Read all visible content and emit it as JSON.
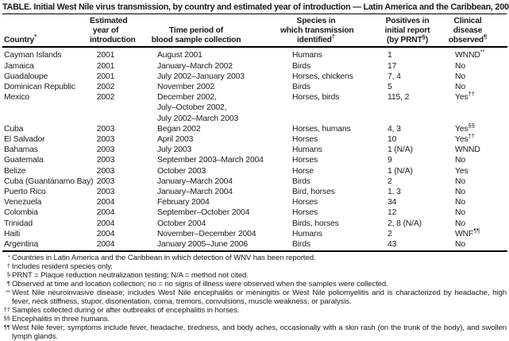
{
  "title": "TABLE. Initial West Nile virus transmission, by country and estimated year of introduction — Latin America and the Caribbean, 2001–2004",
  "table": {
    "columns": [
      {
        "lines": [
          [
            {
              "t": "Country"
            },
            {
              "s": "*"
            }
          ]
        ]
      },
      {
        "lines": [
          [
            {
              "t": "Estimated"
            }
          ],
          [
            {
              "t": "year of"
            }
          ],
          [
            {
              "t": "introduction"
            }
          ]
        ]
      },
      {
        "lines": [
          [
            {
              "t": "Time period of"
            }
          ],
          [
            {
              "t": "blood sample collection"
            }
          ]
        ]
      },
      {
        "lines": [
          [
            {
              "t": "Species in"
            }
          ],
          [
            {
              "t": "which transmission"
            }
          ],
          [
            {
              "t": "identified"
            },
            {
              "s": "†"
            }
          ]
        ]
      },
      {
        "lines": [
          [
            {
              "t": "Positives in"
            }
          ],
          [
            {
              "t": "initial report"
            }
          ],
          [
            {
              "t": "(by PRNT"
            },
            {
              "s": "§"
            },
            {
              "t": ")"
            }
          ]
        ]
      },
      {
        "lines": [
          [
            {
              "t": "Clinical"
            }
          ],
          [
            {
              "t": "disease"
            }
          ],
          [
            {
              "t": "observed"
            },
            {
              "s": "¶"
            }
          ]
        ]
      }
    ],
    "rows": [
      {
        "country": "Cayman Islands",
        "year": "2001",
        "period": [
          "August 2001"
        ],
        "species": "Humans",
        "positives": "1",
        "clinical": [
          {
            "t": "WNND"
          },
          {
            "s": "**"
          }
        ]
      },
      {
        "country": "Jamaica",
        "year": "2001",
        "period": [
          "January–March 2002"
        ],
        "species": "Birds",
        "positives": "17",
        "clinical": [
          {
            "t": "No"
          }
        ]
      },
      {
        "country": "Guadaloupe",
        "year": "2001",
        "period": [
          "July 2002–January 2003"
        ],
        "species": "Horses, chickens",
        "positives": "7, 4",
        "clinical": [
          {
            "t": "No"
          }
        ]
      },
      {
        "country": "Dominican Republic",
        "year": "2002",
        "period": [
          "November 2002"
        ],
        "species": "Birds",
        "positives": "5",
        "clinical": [
          {
            "t": "No"
          }
        ]
      },
      {
        "country": "Mexico",
        "year": "2002",
        "period": [
          "December 2002,",
          "July–October 2002,",
          "July 2002–March 2003"
        ],
        "species": "Horses, birds",
        "positives": "115, 2",
        "clinical": [
          {
            "t": "Yes"
          },
          {
            "s": "††"
          }
        ]
      },
      {
        "country": "Cuba",
        "year": "2003",
        "period": [
          "Began 2002"
        ],
        "species": "Horses, humans",
        "positives": "4, 3",
        "clinical": [
          {
            "t": "Yes"
          },
          {
            "s": "§§"
          }
        ]
      },
      {
        "country": "El Salvador",
        "year": "2003",
        "period": [
          "April 2003"
        ],
        "species": "Horses",
        "positives": "10",
        "clinical": [
          {
            "t": "Yes"
          },
          {
            "s": "††"
          }
        ]
      },
      {
        "country": "Bahamas",
        "year": "2003",
        "period": [
          "July 2003"
        ],
        "species": "Humans",
        "positives": "1 (N/A)",
        "clinical": [
          {
            "t": "WNND"
          }
        ]
      },
      {
        "country": "Guatemala",
        "year": "2003",
        "period": [
          "September 2003–March 2004"
        ],
        "species": "Horses",
        "positives": "9",
        "clinical": [
          {
            "t": "No"
          }
        ]
      },
      {
        "country": "Belize",
        "year": "2003",
        "period": [
          "October 2003"
        ],
        "species": "Horse",
        "positives": "1 (N/A)",
        "clinical": [
          {
            "t": "Yes"
          }
        ]
      },
      {
        "country": "Cuba (Guantánamo Bay)",
        "year": "2003",
        "period": [
          "January–March 2004"
        ],
        "species": "Birds",
        "positives": "2",
        "clinical": [
          {
            "t": "No"
          }
        ]
      },
      {
        "country": "Puerto Rico",
        "year": "2003",
        "period": [
          "January–March 2004"
        ],
        "species": "Bird, horses",
        "positives": "1, 3",
        "clinical": [
          {
            "t": "No"
          }
        ]
      },
      {
        "country": "Venezuela",
        "year": "2004",
        "period": [
          "February 2004"
        ],
        "species": "Horses",
        "positives": "34",
        "clinical": [
          {
            "t": "No"
          }
        ]
      },
      {
        "country": "Colombia",
        "year": "2004",
        "period": [
          "September–October 2004"
        ],
        "species": "Horses",
        "positives": "12",
        "clinical": [
          {
            "t": "No"
          }
        ]
      },
      {
        "country": "Trinidad",
        "year": "2004",
        "period": [
          "October 2004"
        ],
        "species": "Birds, horses",
        "positives": "2, 8 (N/A)",
        "clinical": [
          {
            "t": "No"
          }
        ]
      },
      {
        "country": "Haiti",
        "year": "2004",
        "period": [
          "November–December 2004"
        ],
        "species": "Humans",
        "positives": "2",
        "clinical": [
          {
            "t": "WNF"
          },
          {
            "s": "¶¶"
          }
        ]
      },
      {
        "country": "Argentina",
        "year": "2004",
        "period": [
          "January 2005–June 2006"
        ],
        "species": "Birds",
        "positives": "43",
        "clinical": [
          {
            "t": "No"
          }
        ]
      }
    ]
  },
  "footnotes": [
    {
      "marker": "*",
      "text": "Countries in Latin America and the Caribbean in which detection of WNV has been reported."
    },
    {
      "marker": "†",
      "text": "Includes resident species only."
    },
    {
      "marker": "§",
      "text": "PRNT = Plaque reduction neutralization testing; N/A = method not cited."
    },
    {
      "marker": "¶",
      "text": "Observed at time and location collection; no = no signs of illness were observed when the samples were collected."
    },
    {
      "marker": "**",
      "text": "West Nile neuroinvasive disease; includes West Nile encephalitis or meningitis or West Nile poliomyelitis and is characterized by headache, high fever, neck stiffness, stupor, disorientation, coma, tremors, convulsions, muscle weakness, or paralysis."
    },
    {
      "marker": "††",
      "text": "Samples collected during or after outbreaks of encephalitis in horses."
    },
    {
      "marker": "§§",
      "text": "Encephalitis in three humans."
    },
    {
      "marker": "¶¶",
      "text": "West Nile fever; symptoms include fever, headache, tiredness, and body aches, occasionally with a skin rash (on the trunk of the body), and swollen lymph glands."
    }
  ]
}
